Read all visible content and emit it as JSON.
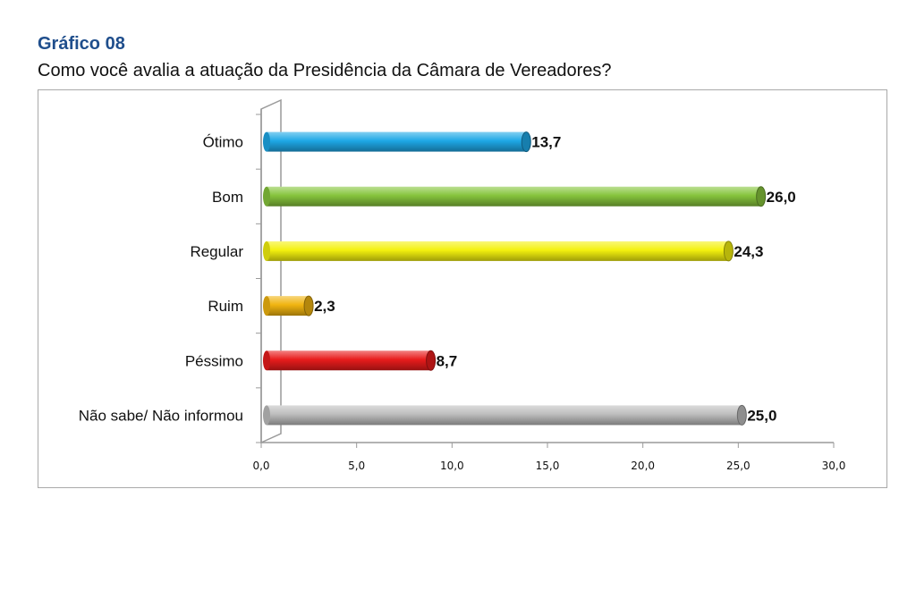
{
  "heading": "Gráfico 08",
  "chart_data": {
    "type": "bar",
    "orientation": "horizontal",
    "title": "Como você avalia a atuação da Presidência da Câmara de Vereadores?",
    "categories": [
      "Ótimo",
      "Bom",
      "Regular",
      "Ruim",
      "Péssimo",
      "Não sabe/ Não informou"
    ],
    "values": [
      13.7,
      26.0,
      24.3,
      2.3,
      8.7,
      25.0
    ],
    "value_labels": [
      "13,7",
      "26,0",
      "24,3",
      "2,3",
      "8,7",
      "25,0"
    ],
    "colors": [
      "#1ea8e6",
      "#86c43c",
      "#f4f10e",
      "#f0b410",
      "#e81c1c",
      "#bdbdbd"
    ],
    "xlim": [
      0,
      30
    ],
    "x_ticks": [
      0,
      5,
      10,
      15,
      20,
      25,
      30
    ],
    "x_tick_labels": [
      "0,0",
      "5,0",
      "10,0",
      "15,0",
      "20,0",
      "25,0",
      "30,0"
    ],
    "xlabel": "",
    "ylabel": "",
    "grid": false,
    "legend": "none"
  }
}
